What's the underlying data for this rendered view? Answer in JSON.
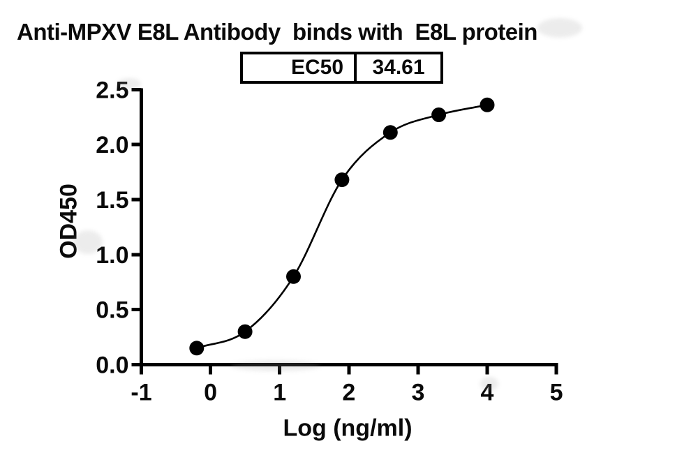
{
  "chart_data": {
    "type": "scatter",
    "title": "Anti-MPXV E8L Antibody  binds with  E8L protein",
    "xlabel": "Log (ng/ml)",
    "ylabel": "OD450",
    "xlim": [
      -1,
      5
    ],
    "ylim": [
      0,
      2.5
    ],
    "grid": false,
    "xticks": [
      {
        "v": -1,
        "label": "-1"
      },
      {
        "v": 0,
        "label": "0"
      },
      {
        "v": 1,
        "label": "1"
      },
      {
        "v": 2,
        "label": "2"
      },
      {
        "v": 3,
        "label": "3"
      },
      {
        "v": 4,
        "label": "4"
      },
      {
        "v": 5,
        "label": "5"
      }
    ],
    "yticks": [
      {
        "v": 0.0,
        "label": "0.0"
      },
      {
        "v": 0.5,
        "label": "0.5"
      },
      {
        "v": 1.0,
        "label": "1.0"
      },
      {
        "v": 1.5,
        "label": "1.5"
      },
      {
        "v": 2.0,
        "label": "2.0"
      },
      {
        "v": 2.5,
        "label": "2.5"
      }
    ],
    "points": [
      {
        "x": -0.2,
        "y": 0.15
      },
      {
        "x": 0.5,
        "y": 0.3
      },
      {
        "x": 1.2,
        "y": 0.8
      },
      {
        "x": 1.9,
        "y": 1.68
      },
      {
        "x": 2.6,
        "y": 2.11
      },
      {
        "x": 3.3,
        "y": 2.27
      },
      {
        "x": 4.0,
        "y": 2.36
      }
    ],
    "curve": "sigmoid-through-points",
    "annotation_table": {
      "rows": [
        {
          "label": "EC50",
          "value": "34.61"
        }
      ]
    },
    "colors": {
      "marker": "#000000",
      "line": "#000000",
      "axis": "#000000",
      "text": "#0a0a0a",
      "background": "#ffffff"
    }
  }
}
